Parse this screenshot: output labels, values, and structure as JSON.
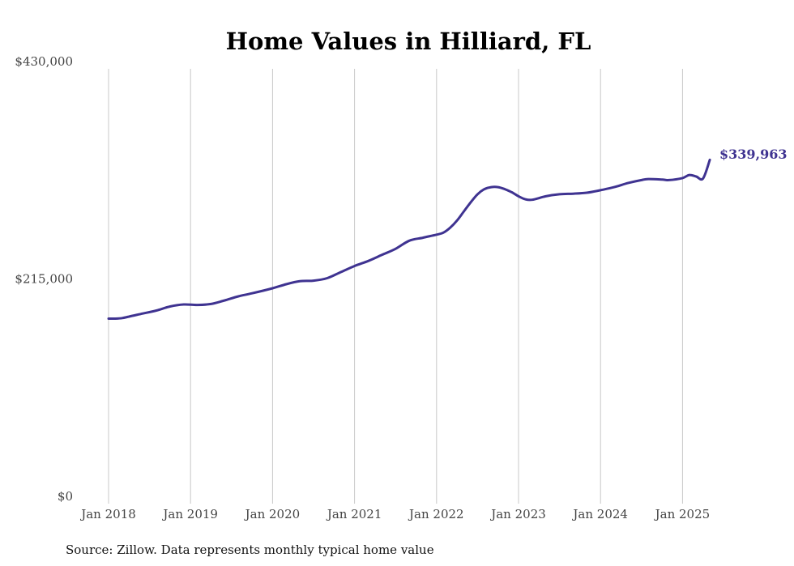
{
  "chart_data": {
    "type": "line",
    "title": "Home Values in Hilliard, FL",
    "source": "Source: Zillow. Data represents monthly typical home value",
    "ylim": [
      0,
      430000
    ],
    "yticks": [
      {
        "value": 0,
        "label": "$0"
      },
      {
        "value": 215000,
        "label": "$215,000"
      },
      {
        "value": 430000,
        "label": "$430,000"
      }
    ],
    "xticks": [
      {
        "value": 2018.0,
        "label": "Jan 2018"
      },
      {
        "value": 2019.0,
        "label": "Jan 2019"
      },
      {
        "value": 2020.0,
        "label": "Jan 2020"
      },
      {
        "value": 2021.0,
        "label": "Jan 2021"
      },
      {
        "value": 2022.0,
        "label": "Jan 2022"
      },
      {
        "value": 2023.0,
        "label": "Jan 2023"
      },
      {
        "value": 2024.0,
        "label": "Jan 2024"
      },
      {
        "value": 2025.0,
        "label": "Jan 2025"
      }
    ],
    "grid": "vertical",
    "line_color": "#3f3391",
    "end_label": "$339,963",
    "series": [
      {
        "x": [
          "2018-01",
          "2018-02",
          "2018-03",
          "2018-04",
          "2018-06",
          "2018-08",
          "2018-10",
          "2018-12",
          "2019-02",
          "2019-04",
          "2019-06",
          "2019-08",
          "2019-10",
          "2020-01",
          "2020-03",
          "2020-05",
          "2020-07",
          "2020-09",
          "2020-11",
          "2021-01",
          "2021-03",
          "2021-05",
          "2021-07",
          "2021-09",
          "2021-11",
          "2022-01",
          "2022-02",
          "2022-03",
          "2022-04",
          "2022-05",
          "2022-06",
          "2022-07",
          "2022-08",
          "2022-09",
          "2022-10",
          "2022-11",
          "2022-12",
          "2023-01",
          "2023-02",
          "2023-03",
          "2023-05",
          "2023-07",
          "2023-09",
          "2023-11",
          "2024-01",
          "2024-03",
          "2024-05",
          "2024-07",
          "2024-08",
          "2024-10",
          "2024-11",
          "2025-01",
          "2025-02",
          "2025-03",
          "2025-04",
          "2025-05"
        ],
        "values": [
          183000,
          183000,
          183500,
          185000,
          188000,
          191000,
          195000,
          197000,
          196500,
          197500,
          201000,
          205000,
          208000,
          213000,
          217000,
          220000,
          220500,
          223000,
          229000,
          235000,
          240000,
          246000,
          252000,
          260000,
          263000,
          266000,
          268000,
          273000,
          280000,
          289000,
          298000,
          306000,
          311000,
          313000,
          313000,
          311000,
          308000,
          304000,
          301000,
          300500,
          304000,
          306000,
          306500,
          307500,
          310000,
          313000,
          317000,
          320000,
          321000,
          320500,
          320000,
          322000,
          325000,
          323500,
          321500,
          339963
        ]
      }
    ]
  }
}
